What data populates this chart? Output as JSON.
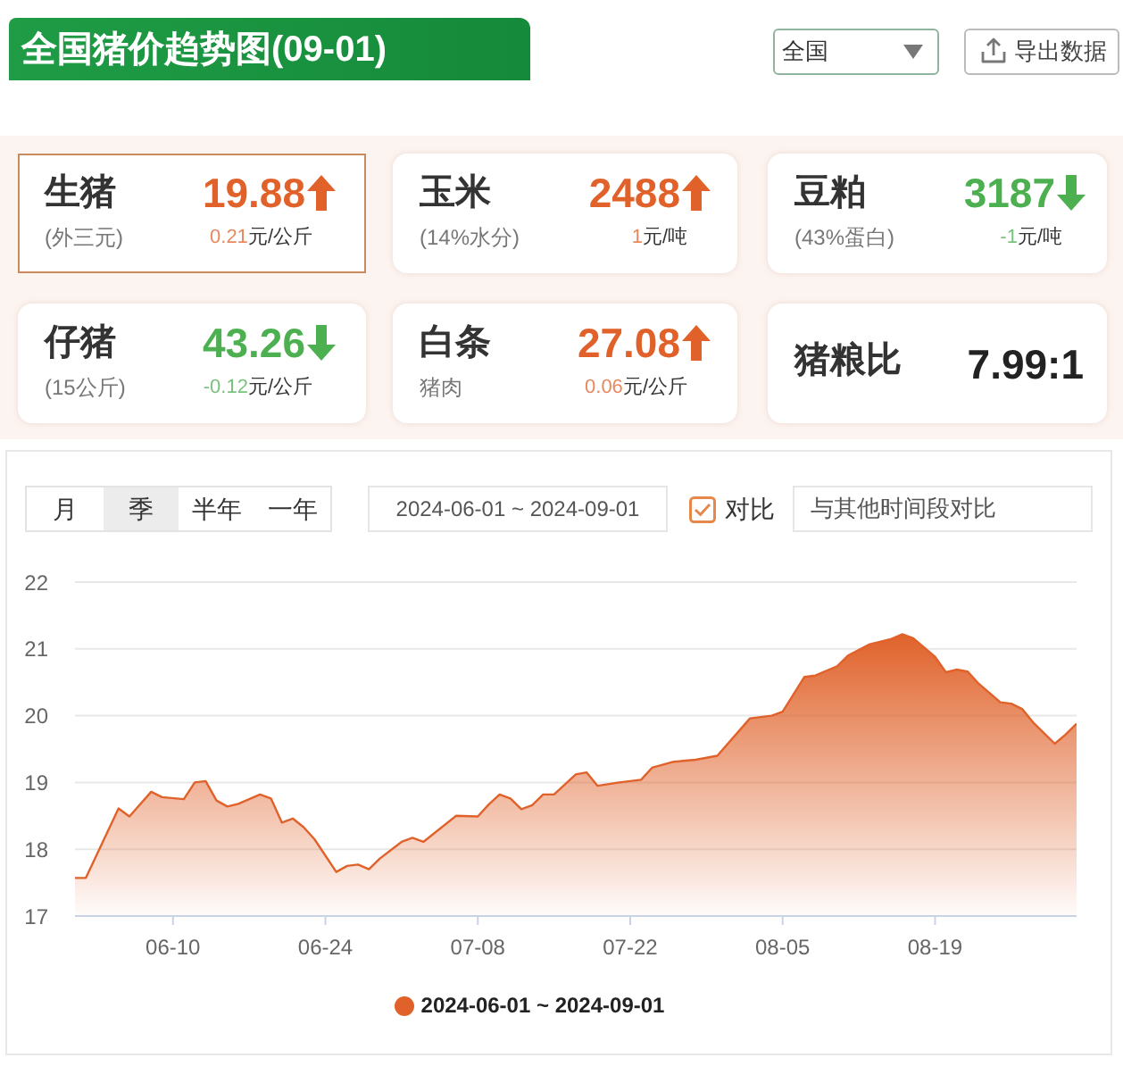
{
  "chart_data": [
    {
      "type": "other",
      "title": "全国猪价趋势图(09-01)",
      "categories": [
        "生猪",
        "玉米",
        "豆粕",
        "仔猪",
        "白条",
        "猪粮比"
      ],
      "colors": [
        "#e0622a",
        "#e0622a",
        "#4caf50",
        "#4caf50",
        "#e0622a",
        "#222222"
      ],
      "annotations": [
        "全国",
        "导出数据",
        "(外三元)",
        "19.88",
        "0.21",
        "元/公斤",
        "(14%水分)",
        "2488",
        "1",
        "元/吨",
        "(43%蛋白)",
        "3187",
        "-1",
        "元/吨",
        "(15公斤)",
        "43.26",
        "-0.12",
        "元/公斤",
        "猪肉",
        "27.08",
        "0.06",
        "元/公斤",
        "7.99:1"
      ]
    },
    {
      "type": "area",
      "x": [
        "--06-01",
        "--06-02",
        "--06-05",
        "--06-06",
        "--06-08",
        "--06-09",
        "--06-11",
        "--06-12",
        "--06-13",
        "--06-14",
        "--06-15",
        "--06-16",
        "--06-18",
        "--06-19",
        "--06-20",
        "--06-21",
        "--06-22",
        "--06-23",
        "--06-25",
        "--06-26",
        "--06-27",
        "--06-28",
        "--06-29",
        "--07-01",
        "--07-02",
        "--07-03",
        "--07-04",
        "--07-06",
        "--07-08",
        "--07-09",
        "--07-10",
        "--07-11",
        "--07-12",
        "--07-13",
        "--07-14",
        "--07-15",
        "--07-17",
        "--07-18",
        "--07-19",
        "--07-21",
        "--07-23",
        "--07-24",
        "--07-26",
        "--07-28",
        "--07-30",
        "--08-02",
        "--08-04",
        "--08-05",
        "--08-07",
        "--08-08",
        "--08-10",
        "--08-11",
        "--08-13",
        "--08-15",
        "--08-16",
        "--08-17",
        "--08-19",
        "--08-20",
        "--08-21",
        "--08-22",
        "--08-23",
        "--08-25",
        "--08-26",
        "--08-27",
        "--08-28",
        "--08-30",
        "--08-31",
        "--09-01"
      ],
      "series": [
        {
          "name": "2024-06-01 ~ 2024-09-01",
          "color": "#e0622a",
          "values": [
            17.57,
            17.57,
            18.61,
            18.49,
            18.86,
            18.78,
            18.75,
            19.0,
            19.02,
            18.73,
            18.64,
            18.68,
            18.82,
            18.76,
            18.4,
            18.46,
            18.33,
            18.15,
            17.66,
            17.75,
            17.77,
            17.7,
            17.86,
            18.11,
            18.17,
            18.11,
            18.24,
            18.5,
            18.49,
            18.67,
            18.82,
            18.76,
            18.6,
            18.66,
            18.82,
            18.82,
            19.12,
            19.15,
            18.95,
            19.0,
            19.04,
            19.22,
            19.31,
            19.34,
            19.4,
            19.96,
            20.0,
            20.06,
            20.58,
            20.6,
            20.74,
            20.9,
            21.07,
            21.15,
            21.22,
            21.16,
            20.88,
            20.65,
            20.69,
            20.66,
            20.48,
            20.2,
            20.18,
            20.1,
            19.9,
            19.58,
            19.72,
            19.88
          ]
        }
      ],
      "xlim": [
        "--06-01",
        "--09-01"
      ],
      "xticks": [
        {
          "value": "--06-10",
          "label": "06-10"
        },
        {
          "value": "--06-24",
          "label": "06-24"
        },
        {
          "value": "--07-08",
          "label": "07-08"
        },
        {
          "value": "--07-22",
          "label": "07-22"
        },
        {
          "value": "--08-05",
          "label": "08-05"
        },
        {
          "value": "--08-19",
          "label": "08-19"
        }
      ],
      "ylim": [
        17,
        22
      ],
      "yticks": [
        17,
        18,
        19,
        20,
        21,
        22
      ],
      "grid": "y",
      "legend": "bottom",
      "annotations": [
        "月",
        "季",
        "半年",
        "一年",
        "2024-06-01 ~ 2024-09-01",
        "对比",
        "与其他时间段对比"
      ]
    }
  ]
}
